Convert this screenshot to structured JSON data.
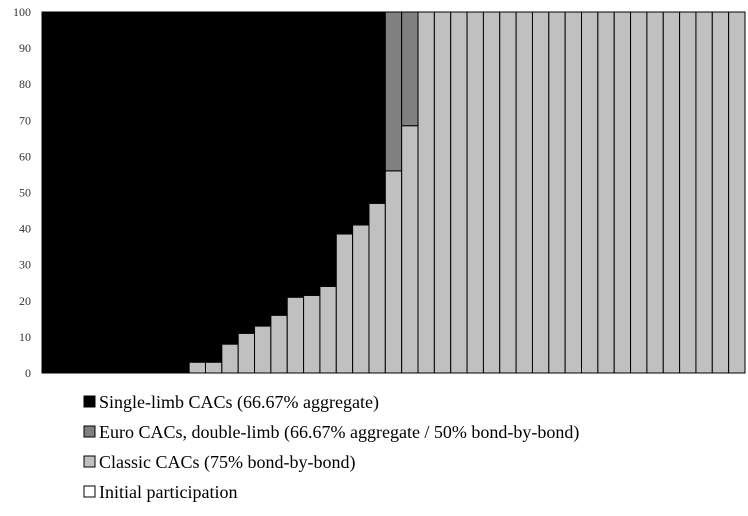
{
  "chart_data": {
    "type": "bar",
    "stacked": true,
    "ylim": [
      0,
      100
    ],
    "yticks": [
      0,
      10,
      20,
      30,
      40,
      50,
      60,
      70,
      80,
      90,
      100
    ],
    "grid": false,
    "legend_position": "bottom",
    "series": [
      {
        "name": "Classic CACs (75% bond-by-bond)",
        "color": "#c0c0c0",
        "values": [
          0,
          0,
          0,
          0,
          0,
          0,
          0,
          0,
          0,
          3,
          3,
          8,
          11,
          13,
          16,
          21,
          21.5,
          24,
          38.5,
          41,
          47,
          56,
          68.5,
          100,
          100,
          100,
          100,
          100,
          100,
          100,
          100,
          100,
          100,
          100,
          100,
          100,
          100,
          100,
          100,
          100,
          100,
          100,
          100
        ]
      },
      {
        "name": "Euro CACs, double-limb (66.67% aggregate / 50% bond-by-bond)",
        "color": "#808080",
        "values": [
          0,
          0,
          0,
          0,
          0,
          0,
          0,
          0,
          0,
          0,
          0,
          0,
          0,
          0,
          0,
          0,
          0,
          0,
          0,
          0,
          0,
          44,
          31.5,
          0,
          0,
          0,
          0,
          0,
          0,
          0,
          0,
          0,
          0,
          0,
          0,
          0,
          0,
          0,
          0,
          0,
          0,
          0,
          0
        ]
      },
      {
        "name": "Single-limb CACs (66.67% aggregate)",
        "color": "#000000",
        "values": [
          100,
          100,
          100,
          100,
          100,
          100,
          100,
          100,
          100,
          97,
          97,
          92,
          89,
          87,
          84,
          79,
          78.5,
          76,
          61.5,
          59,
          53,
          0,
          0,
          0,
          0,
          0,
          0,
          0,
          0,
          0,
          0,
          0,
          0,
          0,
          0,
          0,
          0,
          0,
          0,
          0,
          0,
          0,
          0
        ]
      },
      {
        "name": "Initial participation",
        "color": "#ffffff",
        "values": [
          0,
          0,
          0,
          0,
          0,
          0,
          0,
          0,
          0,
          0,
          0,
          0,
          0,
          0,
          0,
          0,
          0,
          0,
          0,
          0,
          0,
          0,
          0,
          0,
          0,
          0,
          0,
          0,
          0,
          0,
          0,
          0,
          0,
          0,
          0,
          0,
          0,
          0,
          0,
          0,
          0,
          0,
          0
        ]
      }
    ],
    "legend": [
      {
        "label": "Single-limb CACs (66.67% aggregate)",
        "color": "#000000"
      },
      {
        "label": "Euro CACs, double-limb (66.67% aggregate / 50% bond-by-bond)",
        "color": "#808080"
      },
      {
        "label": "Classic CACs (75% bond-by-bond)",
        "color": "#c0c0c0"
      },
      {
        "label": "Initial participation",
        "color": "#ffffff"
      }
    ]
  }
}
